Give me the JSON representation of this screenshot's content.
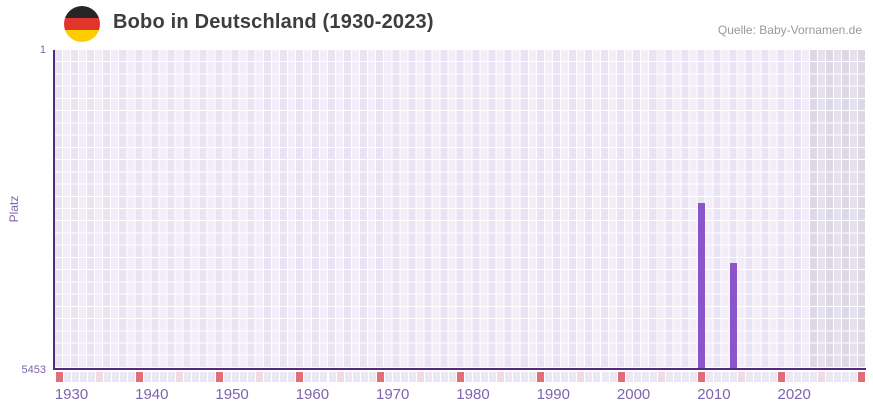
{
  "header": {
    "flag_icon": "german-flag-circle-icon",
    "title": "Bobo in Deutschland (1930-2023)",
    "source": "Quelle: Baby-Vornamen.de"
  },
  "chart_data": {
    "type": "bar",
    "title": "Bobo in Deutschland (1930-2023)",
    "source": "Quelle: Baby-Vornamen.de",
    "xlabel": "",
    "ylabel": "Platz",
    "y_axis": {
      "top_tick": "1",
      "bottom_tick": "5453",
      "min": 1,
      "max": 5453,
      "inverted": true,
      "note": "rank 1 is best and drawn at top; bars grow upward from rank 5453 baseline"
    },
    "x_axis": {
      "start_year": 1930,
      "end_year": 2030,
      "data_end_year": 2023,
      "tick_years": [
        1930,
        1940,
        1950,
        1960,
        1970,
        1980,
        1990,
        2000,
        2010,
        2020
      ]
    },
    "bars": [
      {
        "year": 2010,
        "platz": 2620
      },
      {
        "year": 2014,
        "platz": 3650
      }
    ],
    "future_shaded_region": {
      "from_year": 2024,
      "to_year": 2030
    },
    "grid": true,
    "legend": "none"
  },
  "colors": {
    "bar": "#8b55c9",
    "axis_line": "#4f2c80",
    "axis_text": "#7e64ad",
    "title_text": "#3d3d3d",
    "source_text": "#999999",
    "grid_a": "#e9e3f3",
    "grid_b": "#f1edf9",
    "grid_future_a": "#dcd8e6",
    "grid_future_b": "#e4e1ec",
    "ruler_decade": "#df6e76",
    "ruler_half_decade": "#f3d9e3",
    "ruler_year": "#ece7f5",
    "flag_black": "#262626",
    "flag_red": "#e0342c",
    "flag_gold": "#ffcc00"
  }
}
